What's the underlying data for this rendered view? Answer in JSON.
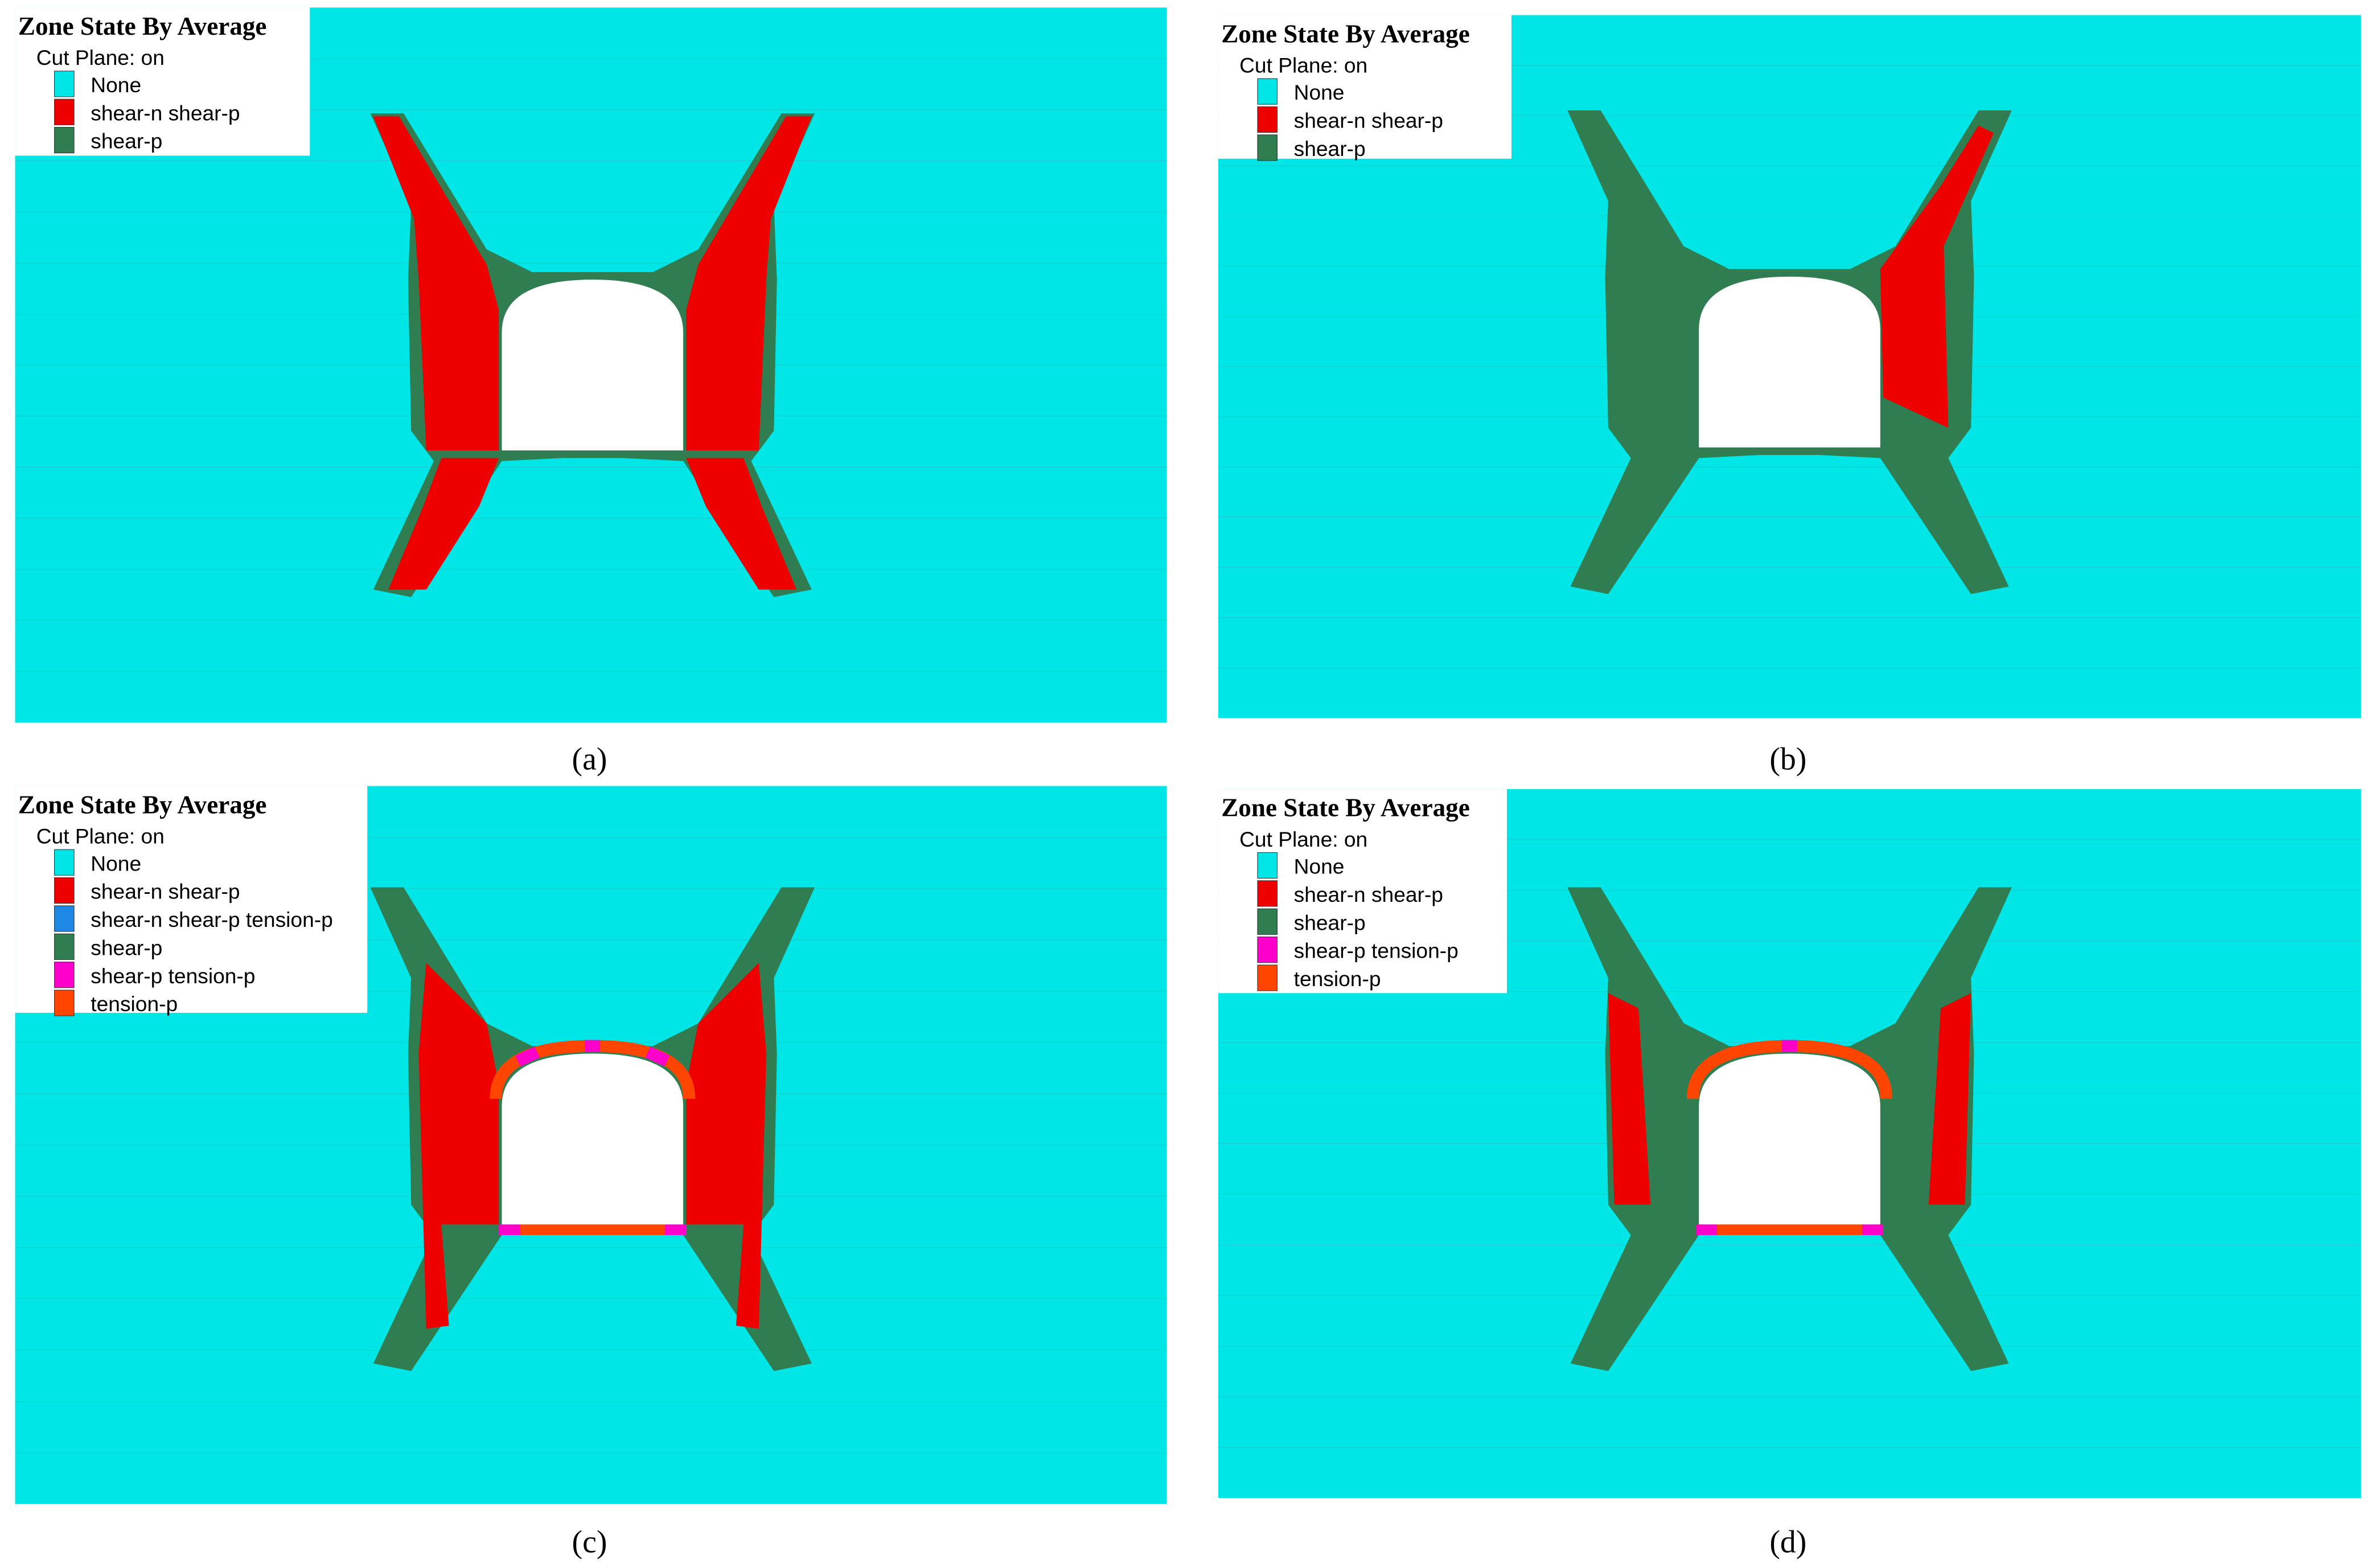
{
  "panels": [
    {
      "title": "Zone State By Average",
      "subtitle": "Cut Plane: on",
      "caption": "(a)",
      "legend": [
        {
          "name": "None",
          "color": "#00e5e5"
        },
        {
          "name": "shear-n shear-p",
          "color": "#ee0000"
        },
        {
          "name": "shear-p",
          "color": "#2f7d50"
        }
      ]
    },
    {
      "title": "Zone State By Average",
      "subtitle": "Cut Plane: on",
      "caption": "(b)",
      "legend": [
        {
          "name": "None",
          "color": "#00e5e5"
        },
        {
          "name": "shear-n shear-p",
          "color": "#ee0000"
        },
        {
          "name": "shear-p",
          "color": "#2f7d50"
        }
      ]
    },
    {
      "title": "Zone State By Average",
      "subtitle": "Cut Plane: on",
      "caption": "(c)",
      "legend": [
        {
          "name": "None",
          "color": "#00e5e5"
        },
        {
          "name": "shear-n shear-p",
          "color": "#ee0000"
        },
        {
          "name": "shear-n shear-p tension-p",
          "color": "#1e88e5"
        },
        {
          "name": "shear-p",
          "color": "#2f7d50"
        },
        {
          "name": "shear-p tension-p",
          "color": "#ff00cc"
        },
        {
          "name": "tension-p",
          "color": "#ff4500"
        }
      ]
    },
    {
      "title": "Zone State By Average",
      "subtitle": "Cut Plane: on",
      "caption": "(d)",
      "legend": [
        {
          "name": "None",
          "color": "#00e5e5"
        },
        {
          "name": "shear-n shear-p",
          "color": "#ee0000"
        },
        {
          "name": "shear-p",
          "color": "#2f7d50"
        },
        {
          "name": "shear-p tension-p",
          "color": "#ff00cc"
        },
        {
          "name": "tension-p",
          "color": "#ff4500"
        }
      ]
    }
  ]
}
